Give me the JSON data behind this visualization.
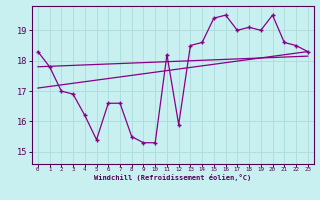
{
  "xlabel": "Windchill (Refroidissement éolien,°C)",
  "bg_color": "#c8f0f0",
  "line_color": "#880088",
  "grid_color": "#b0dede",
  "spine_color": "#550055",
  "x_ticks": [
    0,
    1,
    2,
    3,
    4,
    5,
    6,
    7,
    8,
    9,
    10,
    11,
    12,
    13,
    14,
    15,
    16,
    17,
    18,
    19,
    20,
    21,
    22,
    23
  ],
  "y_ticks": [
    15,
    16,
    17,
    18,
    19
  ],
  "xlim": [
    -0.5,
    23.5
  ],
  "ylim": [
    14.6,
    19.8
  ],
  "series1_x": [
    0,
    1,
    2,
    3,
    4,
    5,
    6,
    7,
    8,
    9,
    10,
    11,
    12,
    13,
    14,
    15,
    16,
    17,
    18,
    19,
    20,
    21,
    22,
    23
  ],
  "series1_y": [
    18.3,
    17.8,
    17.0,
    16.9,
    16.2,
    15.4,
    16.6,
    16.6,
    15.5,
    15.3,
    15.3,
    18.2,
    15.9,
    18.5,
    18.6,
    19.4,
    19.5,
    19.0,
    19.1,
    19.0,
    19.5,
    18.6,
    18.5,
    18.3
  ],
  "series2_x": [
    0,
    23
  ],
  "series2_y": [
    17.1,
    18.3
  ],
  "series3_x": [
    0,
    23
  ],
  "series3_y": [
    17.8,
    18.15
  ]
}
